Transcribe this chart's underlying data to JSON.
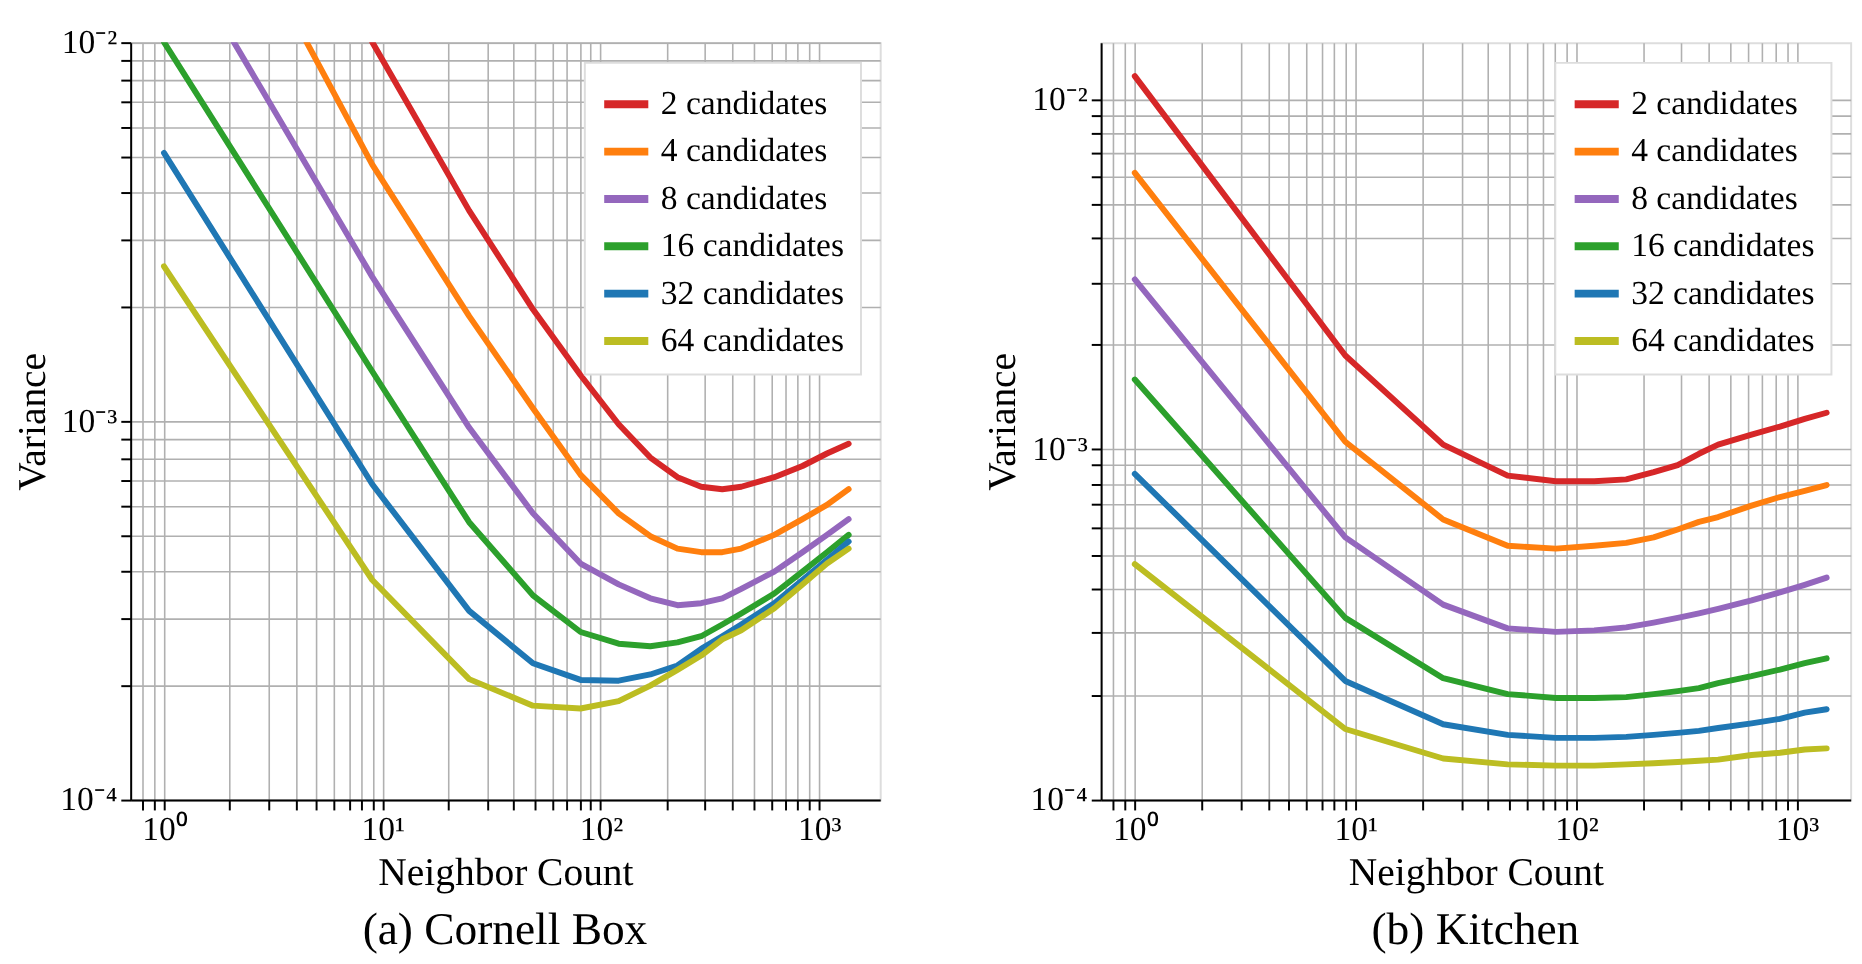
{
  "chart_data": [
    {
      "type": "line",
      "title": "(a) Cornell Box",
      "xlabel": "Neighbor Count",
      "ylabel": "Variance",
      "log": "xy",
      "grid": true,
      "legend": "top right",
      "line_style": "solid",
      "x": [
        1,
        9,
        25,
        49,
        81,
        121,
        169,
        225,
        289,
        361,
        441,
        625,
        841,
        1089,
        1369
      ],
      "xlim": [
        0.7,
        1900
      ],
      "ylim": [
        0.0001,
        0.01
      ],
      "xticks": [
        {
          "value": 0.8,
          "label": null
        },
        {
          "value": 0.9,
          "label": null
        },
        {
          "value": 1,
          "label": "10⁰"
        },
        {
          "value": 2,
          "label": null
        },
        {
          "value": 3,
          "label": null
        },
        {
          "value": 4,
          "label": null
        },
        {
          "value": 5,
          "label": null
        },
        {
          "value": 6,
          "label": null
        },
        {
          "value": 7,
          "label": null
        },
        {
          "value": 8,
          "label": null
        },
        {
          "value": 9,
          "label": null
        },
        {
          "value": 10,
          "label": "10¹"
        },
        {
          "value": 20,
          "label": null
        },
        {
          "value": 30,
          "label": null
        },
        {
          "value": 40,
          "label": null
        },
        {
          "value": 50,
          "label": null
        },
        {
          "value": 60,
          "label": null
        },
        {
          "value": 70,
          "label": null
        },
        {
          "value": 80,
          "label": null
        },
        {
          "value": 90,
          "label": null
        },
        {
          "value": 100,
          "label": "10²"
        },
        {
          "value": 200,
          "label": null
        },
        {
          "value": 300,
          "label": null
        },
        {
          "value": 400,
          "label": null
        },
        {
          "value": 500,
          "label": null
        },
        {
          "value": 600,
          "label": null
        },
        {
          "value": 700,
          "label": null
        },
        {
          "value": 800,
          "label": null
        },
        {
          "value": 900,
          "label": null
        },
        {
          "value": 1000,
          "label": "10³"
        }
      ],
      "yticks": [
        {
          "value": 0.0001,
          "label": "10⁻⁴"
        },
        {
          "value": 0.0002,
          "label": null
        },
        {
          "value": 0.0003,
          "label": null
        },
        {
          "value": 0.0004,
          "label": null
        },
        {
          "value": 0.0005,
          "label": null
        },
        {
          "value": 0.0006,
          "label": null
        },
        {
          "value": 0.0007,
          "label": null
        },
        {
          "value": 0.0008,
          "label": null
        },
        {
          "value": 0.0009,
          "label": null
        },
        {
          "value": 0.001,
          "label": "10⁻³"
        },
        {
          "value": 0.002,
          "label": null
        },
        {
          "value": 0.003,
          "label": null
        },
        {
          "value": 0.004,
          "label": null
        },
        {
          "value": 0.005,
          "label": null
        },
        {
          "value": 0.006,
          "label": null
        },
        {
          "value": 0.007,
          "label": null
        },
        {
          "value": 0.008,
          "label": null
        },
        {
          "value": 0.009,
          "label": null
        },
        {
          "value": 0.01,
          "label": "10⁻²"
        }
      ],
      "series": [
        {
          "name": "2 candidates",
          "color": "#d62728",
          "x": [
            9,
            25,
            49,
            81,
            121,
            169,
            225,
            289,
            361,
            441,
            625,
            841,
            1089,
            1369
          ],
          "values": [
            0.01,
            0.00359,
            0.00197,
            0.00132,
            0.00098,
            0.0008,
            0.00071,
            0.00067,
            0.00066,
            0.00067,
            0.00071,
            0.00076,
            0.00082,
            0.00087
          ]
        },
        {
          "name": "4 candidates",
          "color": "#ff7f0e",
          "x": [
            4.5,
            9,
            25,
            49,
            81,
            121,
            169,
            225,
            289,
            361,
            441,
            625,
            841,
            1089,
            1369
          ],
          "values": [
            0.01,
            0.00475,
            0.00189,
            0.00108,
            0.00072,
            0.00057,
            0.000496,
            0.00046,
            0.00045,
            0.00045,
            0.00046,
            0.0005,
            0.00055,
            0.0006,
            0.00066
          ]
        },
        {
          "name": "8 candidates",
          "color": "#9467bd",
          "x": [
            2.09,
            9,
            25,
            49,
            81,
            121,
            169,
            225,
            289,
            361,
            441,
            625,
            841,
            1089,
            1369
          ],
          "values": [
            0.01,
            0.0024,
            0.00096,
            0.00057,
            0.00042,
            0.00037,
            0.00034,
            0.000326,
            0.00033,
            0.00034,
            0.00036,
            0.0004,
            0.00045,
            0.0005,
            0.00055
          ]
        },
        {
          "name": "16 candidates",
          "color": "#2ca02c",
          "values": [
            0.01,
            0.00135,
            0.00054,
            0.000346,
            0.000277,
            0.000258,
            0.000254,
            0.00026,
            0.00027,
            0.00029,
            0.00031,
            0.00035,
            0.0004,
            0.00045,
            0.0005
          ]
        },
        {
          "name": "32 candidates",
          "color": "#1f77b4",
          "values": [
            0.0051,
            0.00068,
            0.000315,
            0.000229,
            0.000207,
            0.000206,
            0.000214,
            0.000226,
            0.00025,
            0.00027,
            0.00029,
            0.00033,
            0.00038,
            0.00043,
            0.00048
          ]
        },
        {
          "name": "64 candidates",
          "color": "#bcbd22",
          "values": [
            0.00256,
            0.00038,
            0.000208,
            0.000177,
            0.000174,
            0.000182,
            0.0002,
            0.00022,
            0.00024,
            0.000265,
            0.00028,
            0.00032,
            0.00037,
            0.00042,
            0.00046
          ]
        }
      ]
    },
    {
      "type": "line",
      "title": "(b) Kitchen",
      "xlabel": "Neighbor Count",
      "ylabel": "Variance",
      "log": "xy",
      "grid": true,
      "legend": "top right",
      "line_style": "solid",
      "x": [
        1,
        9,
        25,
        49,
        81,
        121,
        169,
        225,
        289,
        361,
        441,
        625,
        841,
        1089,
        1369
      ],
      "xlim": [
        0.7,
        1750
      ],
      "ylim": [
        0.0001,
        0.0145
      ],
      "xticks": [
        {
          "value": 0.8,
          "label": null
        },
        {
          "value": 0.9,
          "label": null
        },
        {
          "value": 1,
          "label": "10⁰"
        },
        {
          "value": 2,
          "label": null
        },
        {
          "value": 3,
          "label": null
        },
        {
          "value": 4,
          "label": null
        },
        {
          "value": 5,
          "label": null
        },
        {
          "value": 6,
          "label": null
        },
        {
          "value": 7,
          "label": null
        },
        {
          "value": 8,
          "label": null
        },
        {
          "value": 9,
          "label": null
        },
        {
          "value": 10,
          "label": "10¹"
        },
        {
          "value": 20,
          "label": null
        },
        {
          "value": 30,
          "label": null
        },
        {
          "value": 40,
          "label": null
        },
        {
          "value": 50,
          "label": null
        },
        {
          "value": 60,
          "label": null
        },
        {
          "value": 70,
          "label": null
        },
        {
          "value": 80,
          "label": null
        },
        {
          "value": 90,
          "label": null
        },
        {
          "value": 100,
          "label": "10²"
        },
        {
          "value": 200,
          "label": null
        },
        {
          "value": 300,
          "label": null
        },
        {
          "value": 400,
          "label": null
        },
        {
          "value": 500,
          "label": null
        },
        {
          "value": 600,
          "label": null
        },
        {
          "value": 700,
          "label": null
        },
        {
          "value": 800,
          "label": null
        },
        {
          "value": 900,
          "label": null
        },
        {
          "value": 1000,
          "label": "10³"
        }
      ],
      "yticks": [
        {
          "value": 0.0001,
          "label": "10⁻⁴"
        },
        {
          "value": 0.0002,
          "label": null
        },
        {
          "value": 0.0003,
          "label": null
        },
        {
          "value": 0.0004,
          "label": null
        },
        {
          "value": 0.0005,
          "label": null
        },
        {
          "value": 0.0006,
          "label": null
        },
        {
          "value": 0.0007,
          "label": null
        },
        {
          "value": 0.0008,
          "label": null
        },
        {
          "value": 0.0009,
          "label": null
        },
        {
          "value": 0.001,
          "label": "10⁻³"
        },
        {
          "value": 0.002,
          "label": null
        },
        {
          "value": 0.003,
          "label": null
        },
        {
          "value": 0.004,
          "label": null
        },
        {
          "value": 0.005,
          "label": null
        },
        {
          "value": 0.006,
          "label": null
        },
        {
          "value": 0.007,
          "label": null
        },
        {
          "value": 0.008,
          "label": null
        },
        {
          "value": 0.009,
          "label": null
        },
        {
          "value": 0.01,
          "label": "10⁻²"
        }
      ],
      "series": [
        {
          "name": "2 candidates",
          "color": "#d62728",
          "values": [
            0.0116,
            0.00185,
            0.00103,
            0.00084,
            0.00081,
            0.00081,
            0.00082,
            0.00086,
            0.0009,
            0.00097,
            0.00103,
            0.0011,
            0.00116,
            0.00122,
            0.00127
          ]
        },
        {
          "name": "4 candidates",
          "color": "#ff7f0e",
          "values": [
            0.00614,
            0.00105,
            0.00063,
            0.00053,
            0.00052,
            0.00053,
            0.00054,
            0.00056,
            0.00059,
            0.00062,
            0.00064,
            0.00069,
            0.00073,
            0.00076,
            0.00079
          ]
        },
        {
          "name": "8 candidates",
          "color": "#9467bd",
          "values": [
            0.00305,
            0.00056,
            0.00036,
            0.000308,
            0.000301,
            0.000304,
            0.00031,
            0.00032,
            0.00033,
            0.00034,
            0.00035,
            0.00037,
            0.00039,
            0.00041,
            0.00043
          ]
        },
        {
          "name": "16 candidates",
          "color": "#2ca02c",
          "values": [
            0.00158,
            0.00033,
            0.000222,
            0.0002,
            0.000195,
            0.000195,
            0.000196,
            0.0002,
            0.000204,
            0.000208,
            0.000215,
            0.000225,
            0.000235,
            0.000245,
            0.000253
          ]
        },
        {
          "name": "32 candidates",
          "color": "#1f77b4",
          "values": [
            0.00085,
            0.000218,
            0.000164,
            0.000153,
            0.00015,
            0.00015,
            0.000151,
            0.000153,
            0.000155,
            0.000157,
            0.00016,
            0.000165,
            0.00017,
            0.000177,
            0.000181
          ]
        },
        {
          "name": "64 candidates",
          "color": "#bcbd22",
          "values": [
            0.00047,
            0.000159,
            0.000131,
            0.000126,
            0.000125,
            0.000125,
            0.000126,
            0.000127,
            0.000128,
            0.000129,
            0.00013,
            0.000134,
            0.000136,
            0.000139,
            0.00014
          ]
        }
      ]
    }
  ]
}
